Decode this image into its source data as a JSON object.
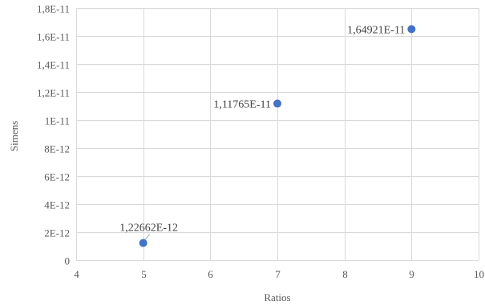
{
  "chart_data": {
    "type": "scatter",
    "title": "",
    "xlabel": "Ratios",
    "ylabel": "Simens",
    "xlim": [
      4,
      10
    ],
    "ylim": [
      0,
      1.8e-11
    ],
    "grid": true,
    "x_ticks": [
      4,
      5,
      6,
      7,
      8,
      9,
      10
    ],
    "x_tick_labels": [
      "4",
      "5",
      "6",
      "7",
      "8",
      "9",
      "10"
    ],
    "y_ticks": [
      0,
      2e-12,
      4e-12,
      6e-12,
      8e-12,
      1e-11,
      1.2e-11,
      1.4e-11,
      1.6e-11,
      1.8e-11
    ],
    "y_tick_labels": [
      "0",
      "2E-12",
      "4E-12",
      "6E-12",
      "8E-12",
      "1E-11",
      "1,2E-11",
      "1,4E-11",
      "1,6E-11",
      "1,8E-11"
    ],
    "series": [
      {
        "color": "#4472c4",
        "points": [
          {
            "x": 5,
            "y": 1.22662e-12,
            "label": "1,22662E-12"
          },
          {
            "x": 7,
            "y": 1.11765e-11,
            "label": "1,11765E-11"
          },
          {
            "x": 9,
            "y": 1.64921e-11,
            "label": "1,64921E-11"
          }
        ]
      }
    ]
  }
}
